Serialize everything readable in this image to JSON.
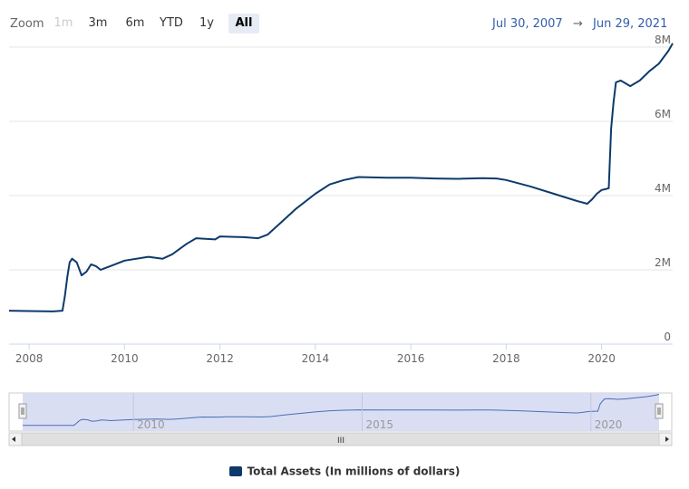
{
  "toolbar": {
    "zoom_label": "Zoom",
    "buttons": [
      "1m",
      "3m",
      "6m",
      "YTD",
      "1y",
      "All"
    ],
    "selected": "All",
    "range_from": "Jul 30, 2007",
    "range_sep": "→",
    "range_to": "Jun 29, 2021"
  },
  "navigator": {
    "ticks": [
      "2010",
      "2015",
      "2020"
    ],
    "scroll_grip": "III"
  },
  "colors": {
    "series": "#0d3a6b",
    "navigator_fill": "#d6daf2",
    "navigator_line": "#4a6fb5",
    "grid": "#e6e6e6"
  },
  "chart_data": {
    "type": "line",
    "xlim": [
      2007.58,
      2021.49
    ],
    "ylim": [
      0,
      8000000
    ],
    "x_ticks": [
      2008,
      2010,
      2012,
      2014,
      2016,
      2018,
      2020
    ],
    "x_tick_labels": [
      "2008",
      "2010",
      "2012",
      "2014",
      "2016",
      "2018",
      "2020"
    ],
    "y_ticks": [
      0,
      2000000,
      4000000,
      6000000,
      8000000
    ],
    "y_tick_labels": [
      "0",
      "2M",
      "4M",
      "6M",
      "8M"
    ],
    "series": [
      {
        "name": "Total Assets (In millions of dollars)",
        "x": [
          2007.58,
          2008.0,
          2008.5,
          2008.7,
          2008.75,
          2008.8,
          2008.85,
          2008.9,
          2009.0,
          2009.1,
          2009.2,
          2009.3,
          2009.4,
          2009.5,
          2009.6,
          2009.7,
          2009.8,
          2010.0,
          2010.5,
          2010.8,
          2011.0,
          2011.3,
          2011.5,
          2011.9,
          2012.0,
          2012.5,
          2012.8,
          2013.0,
          2013.3,
          2013.6,
          2014.0,
          2014.3,
          2014.6,
          2014.9,
          2015.5,
          2016.0,
          2016.5,
          2017.0,
          2017.5,
          2017.8,
          2018.0,
          2018.5,
          2019.0,
          2019.5,
          2019.7,
          2019.8,
          2019.9,
          2020.0,
          2020.1,
          2020.15,
          2020.2,
          2020.25,
          2020.3,
          2020.4,
          2020.6,
          2020.8,
          2021.0,
          2021.2,
          2021.4,
          2021.49
        ],
        "y": [
          900000,
          890000,
          880000,
          900000,
          1300000,
          1800000,
          2200000,
          2300000,
          2200000,
          1850000,
          1950000,
          2150000,
          2100000,
          2000000,
          2050000,
          2100000,
          2150000,
          2250000,
          2350000,
          2300000,
          2420000,
          2700000,
          2850000,
          2820000,
          2900000,
          2880000,
          2850000,
          2950000,
          3300000,
          3650000,
          4050000,
          4300000,
          4420000,
          4500000,
          4480000,
          4480000,
          4460000,
          4450000,
          4470000,
          4460000,
          4420000,
          4250000,
          4050000,
          3850000,
          3780000,
          3900000,
          4050000,
          4150000,
          4180000,
          4200000,
          5800000,
          6500000,
          7050000,
          7100000,
          6950000,
          7100000,
          7350000,
          7550000,
          7900000,
          8100000
        ]
      }
    ],
    "grid": true,
    "legend_position": "bottom-center"
  }
}
